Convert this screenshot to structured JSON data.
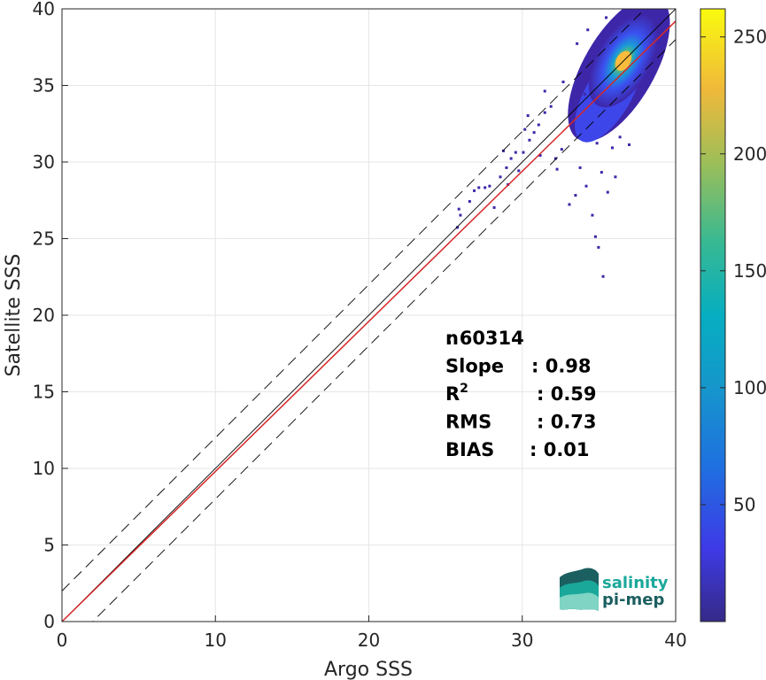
{
  "chart_data": {
    "type": "scatter",
    "subtype": "2d density histogram",
    "xlabel": "Argo SSS",
    "ylabel": "Satellite SSS",
    "xlim": [
      0,
      40
    ],
    "ylim": [
      0,
      40
    ],
    "x_ticks": [
      "0",
      "10",
      "20",
      "30",
      "40"
    ],
    "y_ticks": [
      "0",
      "5",
      "10",
      "15",
      "20",
      "25",
      "30",
      "35",
      "40"
    ],
    "grid": true,
    "colorbar": {
      "range": [
        0,
        262
      ],
      "ticks": [
        "50",
        "100",
        "150",
        "200",
        "250"
      ],
      "colormap": "parula"
    },
    "density_cluster": {
      "center": [
        36.3,
        36.1
      ],
      "peak_count": 250
    },
    "scatter_points": [
      [
        25.8,
        25.7
      ],
      [
        25.9,
        26.9
      ],
      [
        26.0,
        26.5
      ],
      [
        26.6,
        27.4
      ],
      [
        26.9,
        28.1
      ],
      [
        27.2,
        28.3
      ],
      [
        27.6,
        28.3
      ],
      [
        27.9,
        28.4
      ],
      [
        28.2,
        27.0
      ],
      [
        28.6,
        29.0
      ],
      [
        29.0,
        29.6
      ],
      [
        28.8,
        30.7
      ],
      [
        29.3,
        30.2
      ],
      [
        29.6,
        30.6
      ],
      [
        29.8,
        29.4
      ],
      [
        30.1,
        30.6
      ],
      [
        30.5,
        31.4
      ],
      [
        30.2,
        32.1
      ],
      [
        30.8,
        31.9
      ],
      [
        31.1,
        32.4
      ],
      [
        31.5,
        33.2
      ],
      [
        31.9,
        33.6
      ],
      [
        32.2,
        30.2
      ],
      [
        32.6,
        30.8
      ],
      [
        33.1,
        27.2
      ],
      [
        33.5,
        27.8
      ],
      [
        33.8,
        29.6
      ],
      [
        34.2,
        28.4
      ],
      [
        34.6,
        26.5
      ],
      [
        34.8,
        25.1
      ],
      [
        35.0,
        24.4
      ],
      [
        35.2,
        29.3
      ],
      [
        35.6,
        28.0
      ],
      [
        35.3,
        22.5
      ],
      [
        35.9,
        30.9
      ],
      [
        36.4,
        31.6
      ],
      [
        36.1,
        29.0
      ],
      [
        33.6,
        37.7
      ],
      [
        34.3,
        38.6
      ],
      [
        35.5,
        39.4
      ],
      [
        31.5,
        34.6
      ],
      [
        32.7,
        35.2
      ],
      [
        30.4,
        33.0
      ],
      [
        34.1,
        34.4
      ],
      [
        33.3,
        33.9
      ],
      [
        37.0,
        31.1
      ],
      [
        34.9,
        31.2
      ],
      [
        32.3,
        29.5
      ],
      [
        29.1,
        28.5
      ],
      [
        31.2,
        30.4
      ]
    ],
    "lines": [
      {
        "name": "y = x",
        "slope": 1,
        "intercept": 0,
        "color": "#000000",
        "style": "solid"
      },
      {
        "name": "y = x + 2",
        "slope": 1,
        "intercept": 2,
        "color": "#000000",
        "style": "dashed"
      },
      {
        "name": "y = x - 2",
        "slope": 1,
        "intercept": -2,
        "color": "#000000",
        "style": "dashed"
      },
      {
        "name": "fit",
        "slope": 0.98,
        "intercept": 0,
        "color": "#d62728",
        "style": "solid"
      }
    ],
    "stats": [
      {
        "label": "n",
        "value": ": 60314"
      },
      {
        "label": "Slope",
        "value": ": 0.98"
      },
      {
        "label": "R",
        "sup": "2",
        "value": ": 0.59"
      },
      {
        "label": "RMS",
        "value": ": 0.73"
      },
      {
        "label": "BIAS",
        "value": ": 0.01"
      }
    ]
  },
  "logo": {
    "line1": "salinity",
    "line2": "pi-mep"
  },
  "colors": {
    "cluster_outer": "#3e26a8",
    "cluster_mid": "#2f96e0",
    "cluster_core": "#fbbc3e",
    "fit_line": "#d62728",
    "logo_teal": "#1aa89a",
    "logo_dark": "#1c5f60"
  }
}
